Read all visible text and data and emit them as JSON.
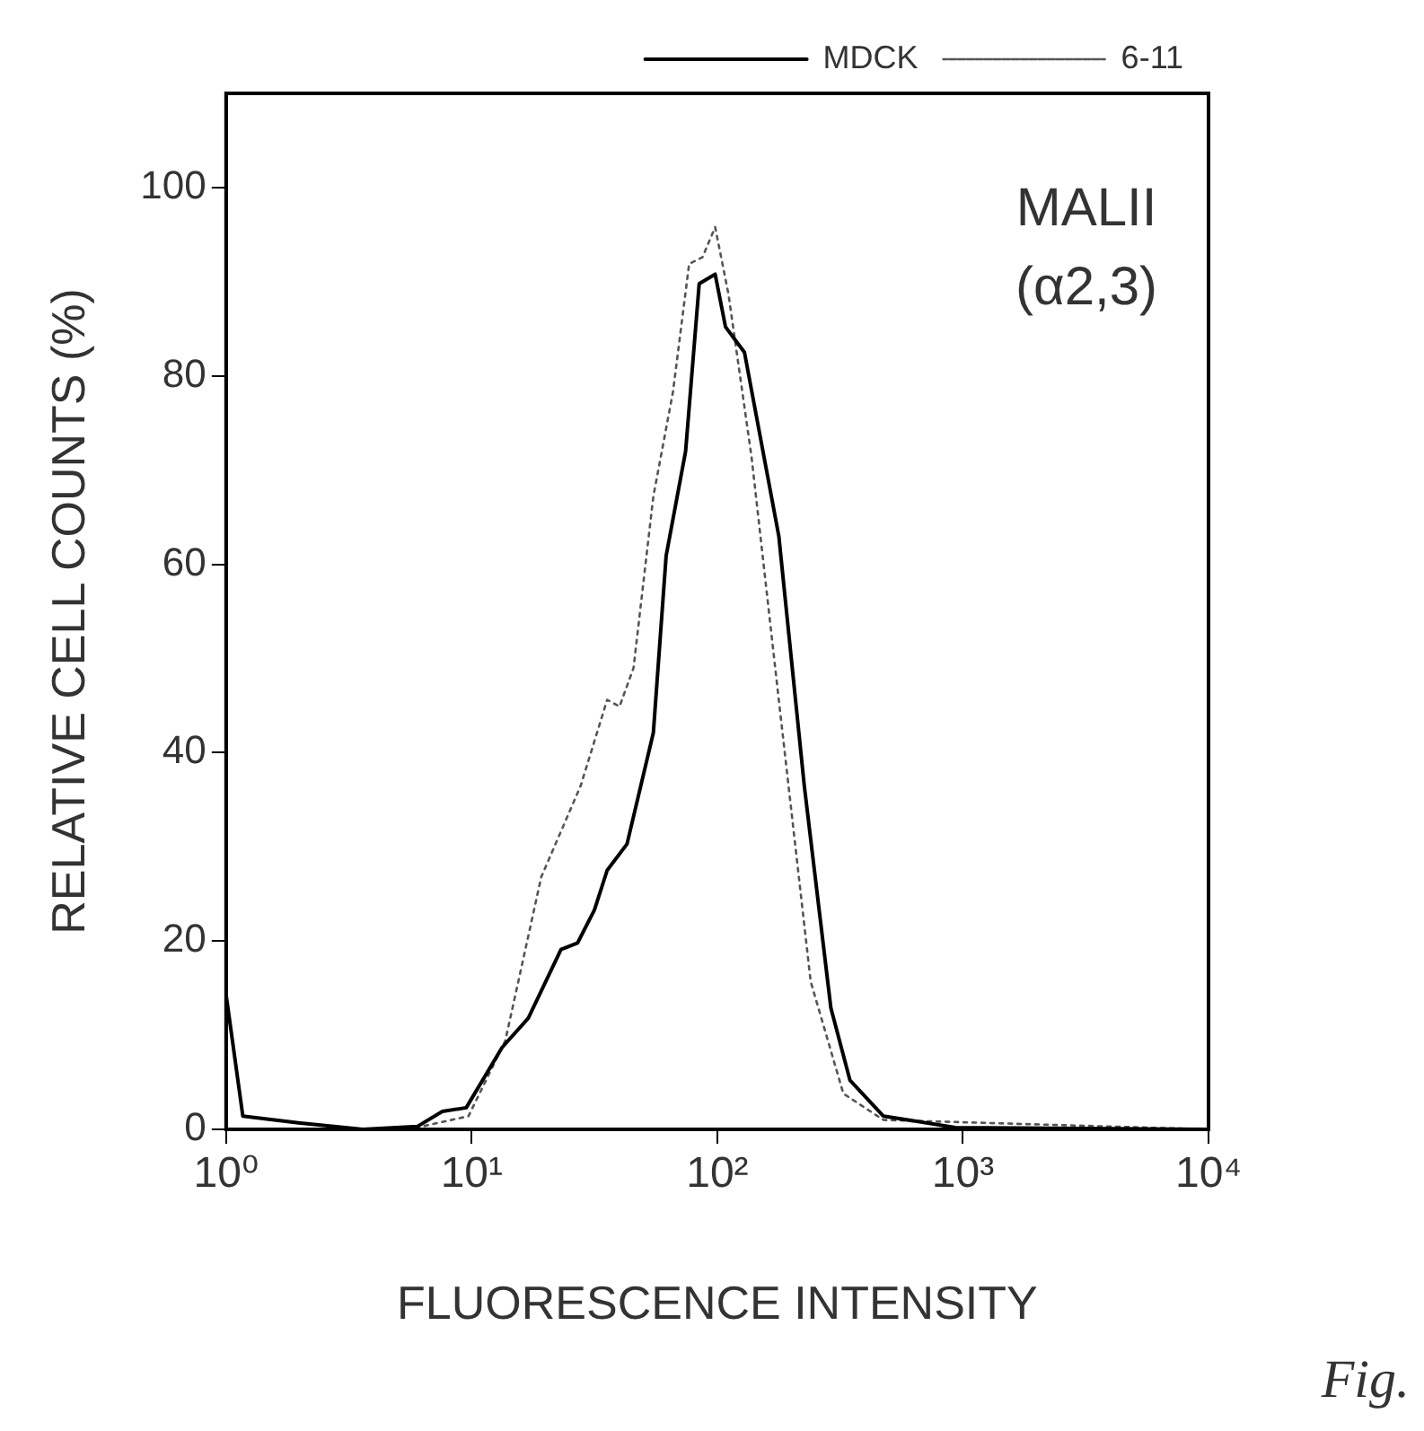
{
  "chart_data": {
    "type": "line",
    "xlabel": "FLUORESCENCE INTENSITY",
    "ylabel": "RELATIVE CELL COUNTS (%)",
    "annotations": [
      "MALII",
      "(α2,3)",
      "Fig."
    ],
    "log": "x",
    "xlim": [
      1,
      10000
    ],
    "xticks": [
      {
        "value": 1,
        "label": "10⁰"
      },
      {
        "value": 10,
        "label": "10¹"
      },
      {
        "value": 100,
        "label": "10²"
      },
      {
        "value": 1000,
        "label": "10³"
      },
      {
        "value": 10000,
        "label": "10⁴"
      }
    ],
    "ylim": [
      0,
      110
    ],
    "yticks": [
      0,
      20,
      40,
      60,
      80,
      100
    ],
    "grid": false,
    "legend": "top right",
    "marker": "none",
    "series": [
      {
        "name": "MDCK",
        "color": "#000000",
        "line_style": "solid",
        "x": [
          1,
          1.17,
          1.97,
          3.6,
          6,
          7.6,
          9.5,
          13.3,
          17,
          23.1,
          27,
          31.6,
          35.6,
          42.9,
          54.9,
          61.9,
          74.3,
          84.4,
          98,
          108,
          129,
          178,
          226,
          290,
          347,
          475,
          933,
          10000
        ],
        "values": [
          14.3,
          1.4,
          0.7,
          0,
          0.3,
          1.9,
          2.3,
          8.7,
          11.8,
          19.1,
          19.8,
          23.3,
          27.5,
          30.3,
          42.1,
          60.9,
          72,
          89.8,
          90.8,
          85.2,
          82.5,
          63,
          36.5,
          12.9,
          5.2,
          1.4,
          0.2,
          0
        ]
      },
      {
        "name": "6-11",
        "color": "#555555",
        "line_style": "dotted",
        "x": [
          1,
          1.17,
          1.97,
          3.6,
          6,
          9.7,
          13.7,
          19.2,
          27.8,
          35.6,
          40,
          45.6,
          54.9,
          66,
          76.8,
          87,
          98,
          111,
          138,
          178,
          240,
          326,
          475,
          10000
        ],
        "values": [
          14.3,
          1.4,
          0.7,
          0,
          0.2,
          1.4,
          9.4,
          26.8,
          36.5,
          45.6,
          44.9,
          49,
          67.2,
          78.3,
          91.9,
          92.6,
          95.8,
          88.7,
          71.3,
          45.6,
          15.7,
          3.8,
          1,
          0
        ]
      }
    ]
  }
}
